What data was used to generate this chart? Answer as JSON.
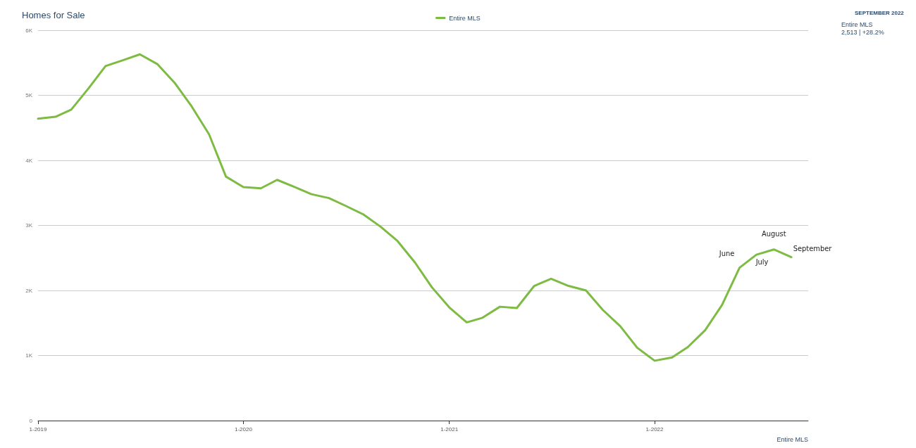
{
  "chart_data": {
    "type": "line",
    "title": "Homes for Sale",
    "xlabel": "Entire MLS",
    "x": [
      "2019-01",
      "2019-02",
      "2019-03",
      "2019-04",
      "2019-05",
      "2019-06",
      "2019-07",
      "2019-08",
      "2019-09",
      "2019-10",
      "2019-11",
      "2019-12",
      "2020-01",
      "2020-02",
      "2020-03",
      "2020-04",
      "2020-05",
      "2020-06",
      "2020-07",
      "2020-08",
      "2020-09",
      "2020-10",
      "2020-11",
      "2020-12",
      "2021-01",
      "2021-02",
      "2021-03",
      "2021-04",
      "2021-05",
      "2021-06",
      "2021-07",
      "2021-08",
      "2021-09",
      "2021-10",
      "2021-11",
      "2021-12",
      "2022-01",
      "2022-02",
      "2022-03",
      "2022-04",
      "2022-05",
      "2022-06",
      "2022-07",
      "2022-08",
      "2022-09"
    ],
    "series": [
      {
        "name": "Entire MLS",
        "color": "#7dbb42",
        "values": [
          4640,
          4670,
          4780,
          5110,
          5450,
          5540,
          5630,
          5480,
          5190,
          4830,
          4400,
          3750,
          3590,
          3570,
          3700,
          3590,
          3480,
          3420,
          3300,
          3170,
          2980,
          2760,
          2430,
          2050,
          1740,
          1510,
          1580,
          1750,
          1730,
          2070,
          2180,
          2070,
          2000,
          1700,
          1450,
          1120,
          920,
          970,
          1130,
          1390,
          1780,
          2350,
          2550,
          2630,
          2513
        ]
      }
    ],
    "xlim": [
      "2019-01",
      "2022-10"
    ],
    "xticks": [
      {
        "value": "2019-01",
        "label": "1-2019"
      },
      {
        "value": "2020-01",
        "label": "1-2020"
      },
      {
        "value": "2021-01",
        "label": "1-2021"
      },
      {
        "value": "2022-01",
        "label": "1-2022"
      }
    ],
    "ylim": [
      0,
      6000
    ],
    "yticks": [
      0,
      {
        "value": 1000,
        "label": "1K"
      },
      {
        "value": 2000,
        "label": "2K"
      },
      {
        "value": 3000,
        "label": "3K"
      },
      {
        "value": 4000,
        "label": "4K"
      },
      {
        "value": 5000,
        "label": "5K"
      },
      {
        "value": 6000,
        "label": "6K"
      }
    ],
    "grid": "y",
    "legend": "top",
    "marker": "none",
    "line_style": "solid",
    "annotations": [
      {
        "text": "June",
        "x": "2022-06",
        "y": 2350
      },
      {
        "text": "July",
        "x": "2022-07",
        "y": 2550
      },
      {
        "text": "August",
        "x": "2022-08",
        "y": 2630
      },
      {
        "text": "September",
        "x": "2022-09",
        "y": 2513
      },
      "SEPTEMBER 2022",
      "Entire MLS",
      "2,513 | +28.2%"
    ]
  }
}
